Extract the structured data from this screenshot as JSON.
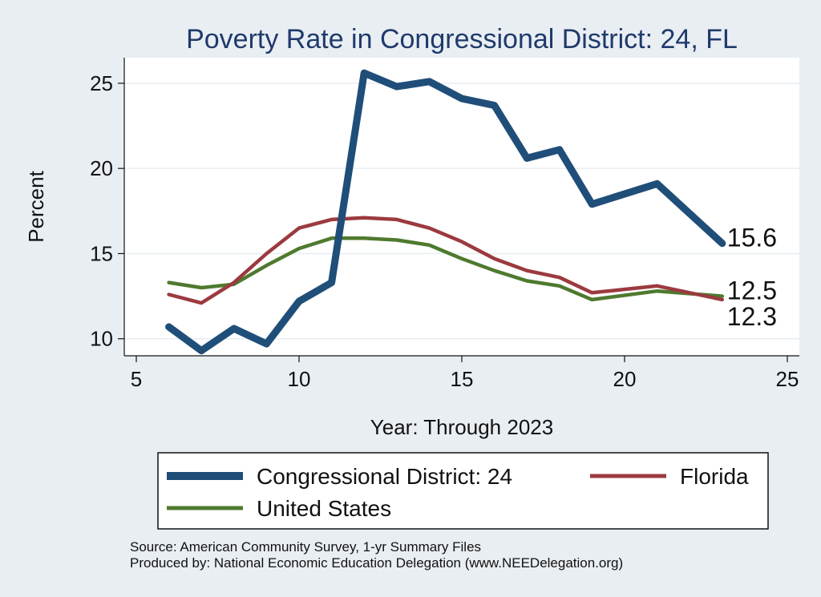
{
  "chart_data": {
    "type": "line",
    "title": "Poverty Rate in Congressional District:  24, FL",
    "xlabel": "Year: Through 2023",
    "ylabel": "Percent",
    "xlim": [
      5,
      25
    ],
    "ylim": [
      9,
      26.5
    ],
    "x_ticks": [
      5,
      10,
      15,
      20,
      25
    ],
    "y_ticks": [
      10,
      15,
      20,
      25
    ],
    "grid": true,
    "legend_position": "bottom",
    "series": [
      {
        "name": "Congressional District:  24",
        "color": "#1f4e79",
        "x": [
          6,
          7,
          8,
          9,
          10,
          11,
          12,
          13,
          14,
          15,
          16,
          17,
          18,
          19,
          21,
          23
        ],
        "values": [
          10.7,
          9.3,
          10.6,
          9.7,
          12.2,
          13.3,
          25.6,
          24.8,
          25.1,
          24.1,
          23.7,
          20.6,
          21.1,
          17.9,
          19.1,
          15.6
        ],
        "end_label": "15.6"
      },
      {
        "name": "Florida",
        "color": "#9b3a3f",
        "x": [
          6,
          7,
          8,
          9,
          10,
          11,
          12,
          13,
          14,
          15,
          16,
          17,
          18,
          19,
          21,
          23
        ],
        "values": [
          12.6,
          12.1,
          13.3,
          15.0,
          16.5,
          17.0,
          17.1,
          17.0,
          16.5,
          15.7,
          14.7,
          14.0,
          13.6,
          12.7,
          13.1,
          12.3
        ],
        "end_label": "12.3"
      },
      {
        "name": "United States",
        "color": "#4e7a2e",
        "x": [
          6,
          7,
          8,
          9,
          10,
          11,
          12,
          13,
          14,
          15,
          16,
          17,
          18,
          19,
          21,
          23
        ],
        "values": [
          13.3,
          13.0,
          13.2,
          14.3,
          15.3,
          15.9,
          15.9,
          15.8,
          15.5,
          14.7,
          14.0,
          13.4,
          13.1,
          12.3,
          12.8,
          12.5
        ],
        "end_label": "12.5"
      }
    ]
  },
  "source_lines": [
    "Source: American Community Survey, 1-yr Summary Files",
    "Produced by: National Economic Education Delegation (www.NEEDelegation.org)"
  ],
  "colors": {
    "background": "#e9eef3",
    "plot_background": "#ffffff",
    "title": "#1f3a6b"
  }
}
